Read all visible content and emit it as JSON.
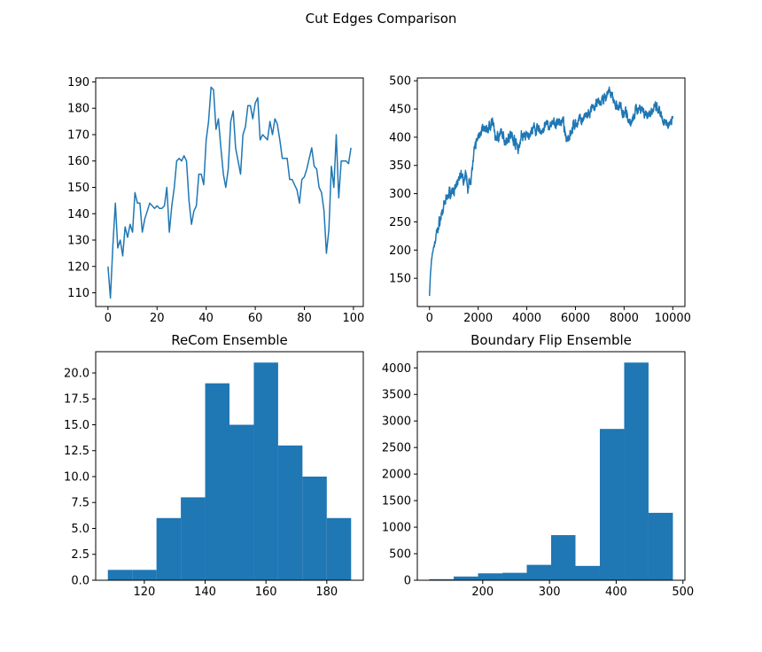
{
  "figure_title": "Cut Edges Comparison",
  "colors": {
    "series": "#1f77b4",
    "axis": "#000000"
  },
  "chart_data": [
    {
      "id": "recom-trace",
      "type": "line",
      "title": "",
      "xlabel": "",
      "ylabel": "",
      "xlim": [
        -5,
        104
      ],
      "ylim": [
        104.8,
        191.5
      ],
      "xticks": [
        0,
        20,
        40,
        60,
        80,
        100
      ],
      "yticks": [
        110,
        120,
        130,
        140,
        150,
        160,
        170,
        180,
        190
      ],
      "x_start": 0,
      "values": [
        120,
        108,
        128,
        144,
        127,
        130,
        124,
        135,
        131,
        136,
        133,
        148,
        144,
        144,
        133,
        138,
        141,
        144,
        143,
        142,
        143,
        142,
        142,
        143,
        150,
        133,
        143,
        150,
        160,
        161,
        160,
        162,
        160,
        145,
        136,
        141,
        143,
        155,
        155,
        151,
        168,
        175,
        188,
        187,
        172,
        176,
        165,
        155,
        150,
        157,
        175,
        179,
        165,
        160,
        155,
        170,
        173,
        181,
        181,
        176,
        182,
        184,
        168,
        170,
        169,
        168,
        175,
        170,
        176,
        174,
        168,
        161,
        161,
        161,
        153,
        153,
        151,
        149,
        144,
        153,
        154,
        157,
        161,
        165,
        158,
        157,
        150,
        148,
        141,
        125,
        134,
        158,
        150,
        170,
        146,
        160,
        160,
        160,
        159,
        165
      ]
    },
    {
      "id": "flip-trace",
      "type": "line",
      "title": "",
      "xlabel": "",
      "ylabel": "",
      "xlim": [
        -500,
        10500
      ],
      "ylim": [
        100,
        505
      ],
      "xticks": [
        0,
        2000,
        4000,
        6000,
        8000,
        10000
      ],
      "yticks": [
        150,
        200,
        250,
        300,
        350,
        400,
        450,
        500
      ],
      "keypoints": [
        [
          0,
          120
        ],
        [
          30,
          150
        ],
        [
          80,
          180
        ],
        [
          150,
          200
        ],
        [
          300,
          230
        ],
        [
          500,
          265
        ],
        [
          800,
          300
        ],
        [
          1000,
          310
        ],
        [
          1100,
          305
        ],
        [
          1200,
          320
        ],
        [
          1300,
          340
        ],
        [
          1400,
          320
        ],
        [
          1500,
          330
        ],
        [
          1600,
          310
        ],
        [
          1700,
          330
        ],
        [
          1800,
          360
        ],
        [
          1900,
          385
        ],
        [
          2000,
          400
        ],
        [
          2100,
          415
        ],
        [
          2300,
          410
        ],
        [
          2500,
          420
        ],
        [
          2600,
          430
        ],
        [
          2700,
          400
        ],
        [
          2900,
          405
        ],
        [
          3100,
          395
        ],
        [
          3300,
          405
        ],
        [
          3500,
          395
        ],
        [
          3650,
          380
        ],
        [
          3800,
          405
        ],
        [
          4000,
          400
        ],
        [
          4200,
          410
        ],
        [
          4400,
          415
        ],
        [
          4600,
          410
        ],
        [
          4800,
          420
        ],
        [
          5000,
          420
        ],
        [
          5200,
          425
        ],
        [
          5400,
          430
        ],
        [
          5500,
          425
        ],
        [
          5600,
          395
        ],
        [
          5700,
          405
        ],
        [
          5800,
          410
        ],
        [
          6000,
          425
        ],
        [
          6200,
          430
        ],
        [
          6400,
          435
        ],
        [
          6600,
          440
        ],
        [
          6800,
          455
        ],
        [
          7000,
          460
        ],
        [
          7200,
          470
        ],
        [
          7350,
          480
        ],
        [
          7500,
          470
        ],
        [
          7700,
          455
        ],
        [
          7900,
          450
        ],
        [
          8100,
          445
        ],
        [
          8300,
          420
        ],
        [
          8500,
          450
        ],
        [
          8700,
          455
        ],
        [
          8900,
          440
        ],
        [
          9100,
          445
        ],
        [
          9300,
          450
        ],
        [
          9500,
          440
        ],
        [
          9600,
          420
        ],
        [
          9800,
          425
        ],
        [
          9900,
          430
        ],
        [
          10000,
          435
        ]
      ],
      "samples": 2500
    },
    {
      "id": "recom-hist",
      "type": "bar",
      "title": "ReCom Ensemble",
      "xlabel": "",
      "ylabel": "",
      "xlim": [
        104,
        192
      ],
      "ylim": [
        0,
        22.05
      ],
      "xticks": [
        120,
        140,
        160,
        180
      ],
      "yticks": [
        0.0,
        2.5,
        5.0,
        7.5,
        10.0,
        12.5,
        15.0,
        17.5,
        20.0
      ],
      "bin_edges": [
        108,
        116,
        124,
        132,
        140,
        148,
        156,
        164,
        172,
        180,
        188
      ],
      "counts": [
        1,
        1,
        6,
        8,
        19,
        15,
        21,
        13,
        10,
        6
      ]
    },
    {
      "id": "flip-hist",
      "type": "bar",
      "title": "Boundary Flip Ensemble",
      "xlabel": "",
      "ylabel": "",
      "xlim": [
        102,
        503
      ],
      "ylim": [
        0,
        4305
      ],
      "xticks": [
        200,
        300,
        400,
        500
      ],
      "yticks": [
        0,
        500,
        1000,
        1500,
        2000,
        2500,
        3000,
        3500,
        4000
      ],
      "bin_edges": [
        120,
        156.5,
        193,
        229.5,
        266,
        302.5,
        339,
        375.5,
        412,
        448.5,
        485
      ],
      "counts": [
        20,
        70,
        130,
        140,
        290,
        850,
        270,
        2850,
        4100,
        1270
      ]
    }
  ]
}
